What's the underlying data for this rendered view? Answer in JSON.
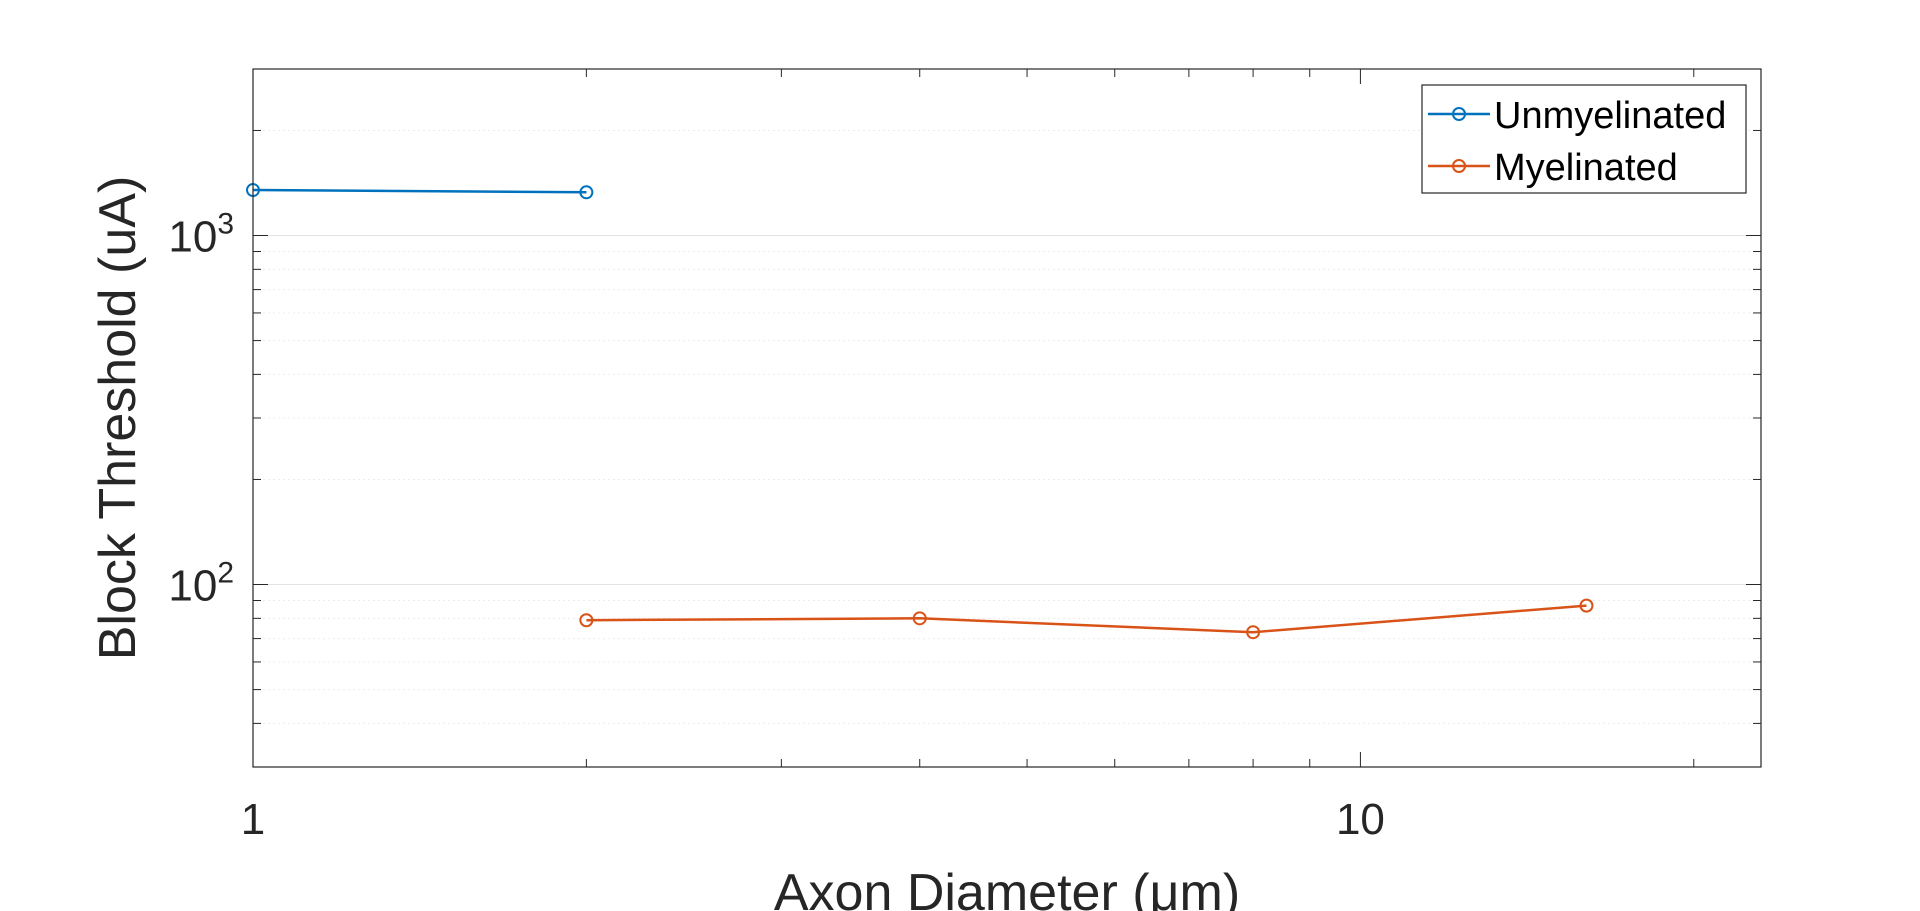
{
  "chart_data": {
    "type": "line",
    "title": "",
    "xlabel": "Axon Diameter (μm)",
    "ylabel": "Block Threshold (uA)",
    "xscale": "log",
    "yscale": "log",
    "xlim": [
      1,
      23
    ],
    "ylim": [
      30,
      3000
    ],
    "grid": "on",
    "legend_position": "top-right",
    "x_ticks": [
      {
        "value": 1,
        "label": "1"
      },
      {
        "value": 10,
        "label": "10"
      }
    ],
    "y_ticks": [
      {
        "value": 100,
        "base": "10",
        "exp": "2"
      },
      {
        "value": 1000,
        "base": "10",
        "exp": "3"
      }
    ],
    "series": [
      {
        "name": "Unmyelinated",
        "color": "#0072BD",
        "points": [
          {
            "x": 1,
            "y": 1350
          },
          {
            "x": 2,
            "y": 1330
          }
        ]
      },
      {
        "name": "Myelinated",
        "color": "#D95319",
        "points": [
          {
            "x": 2,
            "y": 79
          },
          {
            "x": 4,
            "y": 80
          },
          {
            "x": 8,
            "y": 73
          },
          {
            "x": 16,
            "y": 87
          }
        ]
      }
    ]
  }
}
